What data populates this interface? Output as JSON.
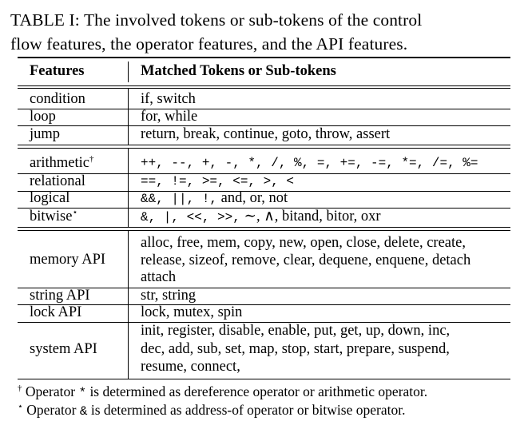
{
  "caption": {
    "line1": "TABLE I: The involved tokens or sub-tokens of the control",
    "line2": "flow features, the operator features, and the API features."
  },
  "table": {
    "headers": {
      "features": "Features",
      "tokens": "Matched Tokens or Sub-tokens"
    },
    "rows": {
      "condition": {
        "feature": "condition",
        "tokens": "if, switch"
      },
      "loop": {
        "feature": "loop",
        "tokens": "for, while"
      },
      "jump": {
        "feature": "jump",
        "tokens": "return, break, continue, goto, throw, assert"
      },
      "arithmetic": {
        "feature": "arithmetic",
        "marker": "†",
        "tokens": "++, --, +, -, *, /, %, =, +=, -=, *=, /=, %="
      },
      "relational": {
        "feature": "relational",
        "tokens": "==, !=, >=, <=, >, <"
      },
      "logical": {
        "feature": "logical",
        "tokens_mono": "&&, ||, !,",
        "tokens_text": " and, or, not"
      },
      "bitwise": {
        "feature": "bitwise",
        "marker": "⋆",
        "tokens_mono": "&, |, <<, >>,",
        "tokens_text": " ∼, ∧, bitand, bitor, oxr"
      },
      "memory_api": {
        "feature": "memory API",
        "line1": "alloc, free, mem, copy, new, open, close, delete, create,",
        "line2": "release, sizeof, remove, clear, dequene, enquene, detach",
        "line3": "attach"
      },
      "string_api": {
        "feature": "string API",
        "tokens": "str, string"
      },
      "lock_api": {
        "feature": "lock API",
        "tokens": "lock, mutex, spin"
      },
      "system_api": {
        "feature": "system API",
        "line1": "init, register, disable, enable, put, get, up, down, inc,",
        "line2": "dec, add, sub, set, map, stop, start, prepare, suspend,",
        "line3": "resume, connect,"
      }
    }
  },
  "footnotes": {
    "dagger": {
      "marker": "†",
      "before": " Operator ",
      "symbol": "*",
      "after": " is determined as dereference operator or arithmetic operator."
    },
    "star": {
      "marker": "⋆",
      "before": " Operator ",
      "symbol": "&",
      "after": " is determined as address-of operator or bitwise operator."
    }
  }
}
